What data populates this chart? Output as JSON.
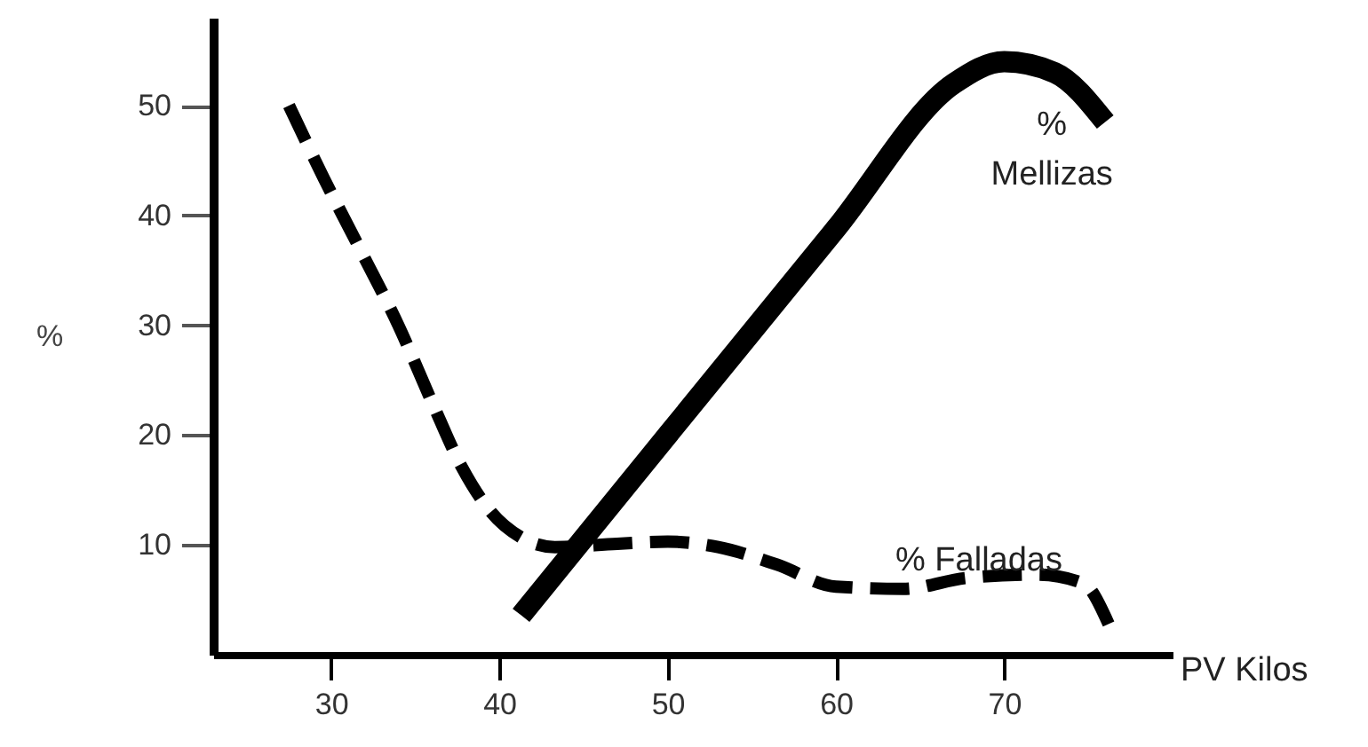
{
  "chart_data": {
    "type": "line",
    "xlabel": "PV Kilos",
    "ylabel": "%",
    "xlim": [
      23,
      80
    ],
    "xticks": [
      30,
      40,
      50,
      60,
      70
    ],
    "ylim": [
      0,
      58
    ],
    "yticks": [
      10,
      20,
      30,
      40,
      50
    ],
    "series": [
      {
        "name": "% Mellizas",
        "color": "#000000",
        "line_style": "solid",
        "x": [
          41.3,
          50,
          60,
          67,
          70,
          73,
          76
        ],
        "values": [
          3.6,
          20,
          38.8,
          52,
          54,
          53,
          48.5
        ]
      },
      {
        "name": "% Falladas",
        "color": "#000000",
        "line_style": "dashed",
        "x": [
          27.5,
          29.6,
          31.8,
          34,
          36,
          37.8,
          39.5,
          41.4,
          43.3,
          47,
          50,
          53,
          56.5,
          60,
          64,
          67.8,
          72,
          74.7,
          76.2
        ],
        "values": [
          50,
          43.3,
          36.7,
          30,
          23,
          17,
          13,
          10.6,
          9.8,
          10.1,
          10.3,
          9.8,
          8.2,
          6.2,
          6,
          7,
          7.3,
          6.5,
          2.8
        ]
      }
    ]
  }
}
